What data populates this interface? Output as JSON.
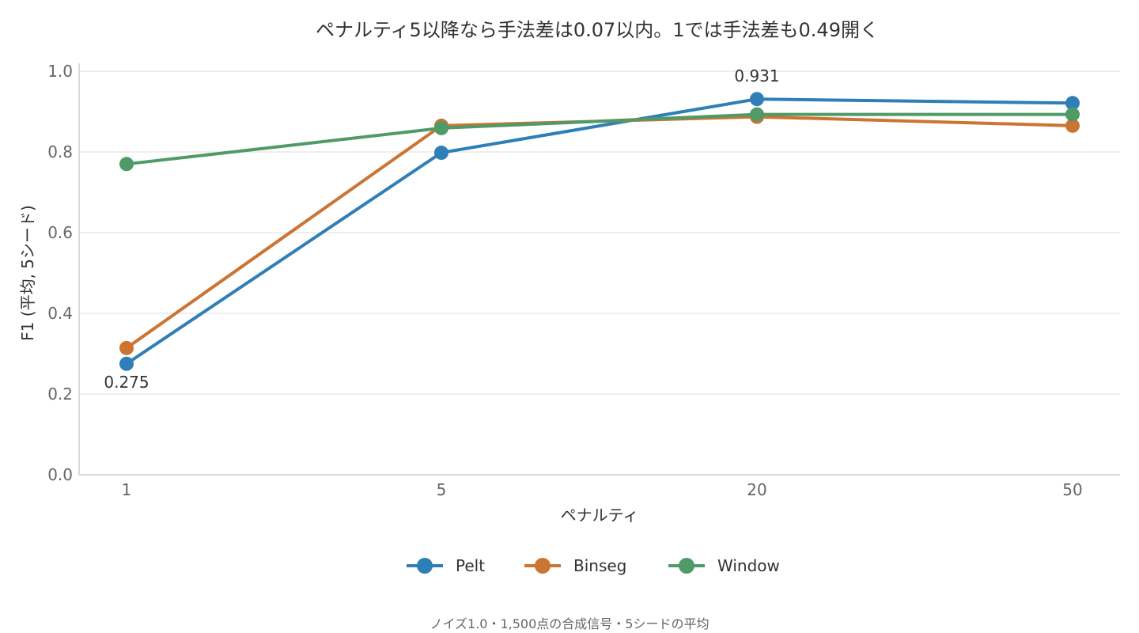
{
  "chart_data": {
    "type": "line",
    "title": "ペナルティ5以降なら手法差は0.07以内。1では手法差も0.49開く",
    "xlabel": "ペナルティ",
    "ylabel": "F1 (平均, 5シード)",
    "categories": [
      "1",
      "5",
      "20",
      "50"
    ],
    "ylim": [
      0.0,
      1.0
    ],
    "yticks": [
      "0.0",
      "0.2",
      "0.4",
      "0.6",
      "0.8",
      "1.0"
    ],
    "grid": true,
    "legend_position": "bottom",
    "series": [
      {
        "name": "Pelt",
        "color": "#2e7eb8",
        "values": [
          0.275,
          0.798,
          0.931,
          0.921
        ]
      },
      {
        "name": "Binseg",
        "color": "#cc7432",
        "values": [
          0.314,
          0.865,
          0.887,
          0.865
        ]
      },
      {
        "name": "Window",
        "color": "#4f9a66",
        "values": [
          0.77,
          0.859,
          0.893,
          0.893
        ]
      }
    ],
    "annotations": [
      {
        "series": "Pelt",
        "index": 0,
        "text": "0.275",
        "position": "below"
      },
      {
        "series": "Pelt",
        "index": 2,
        "text": "0.931",
        "position": "above"
      }
    ],
    "caption": "ノイズ1.0・1,500点の合成信号・5シードの平均"
  }
}
